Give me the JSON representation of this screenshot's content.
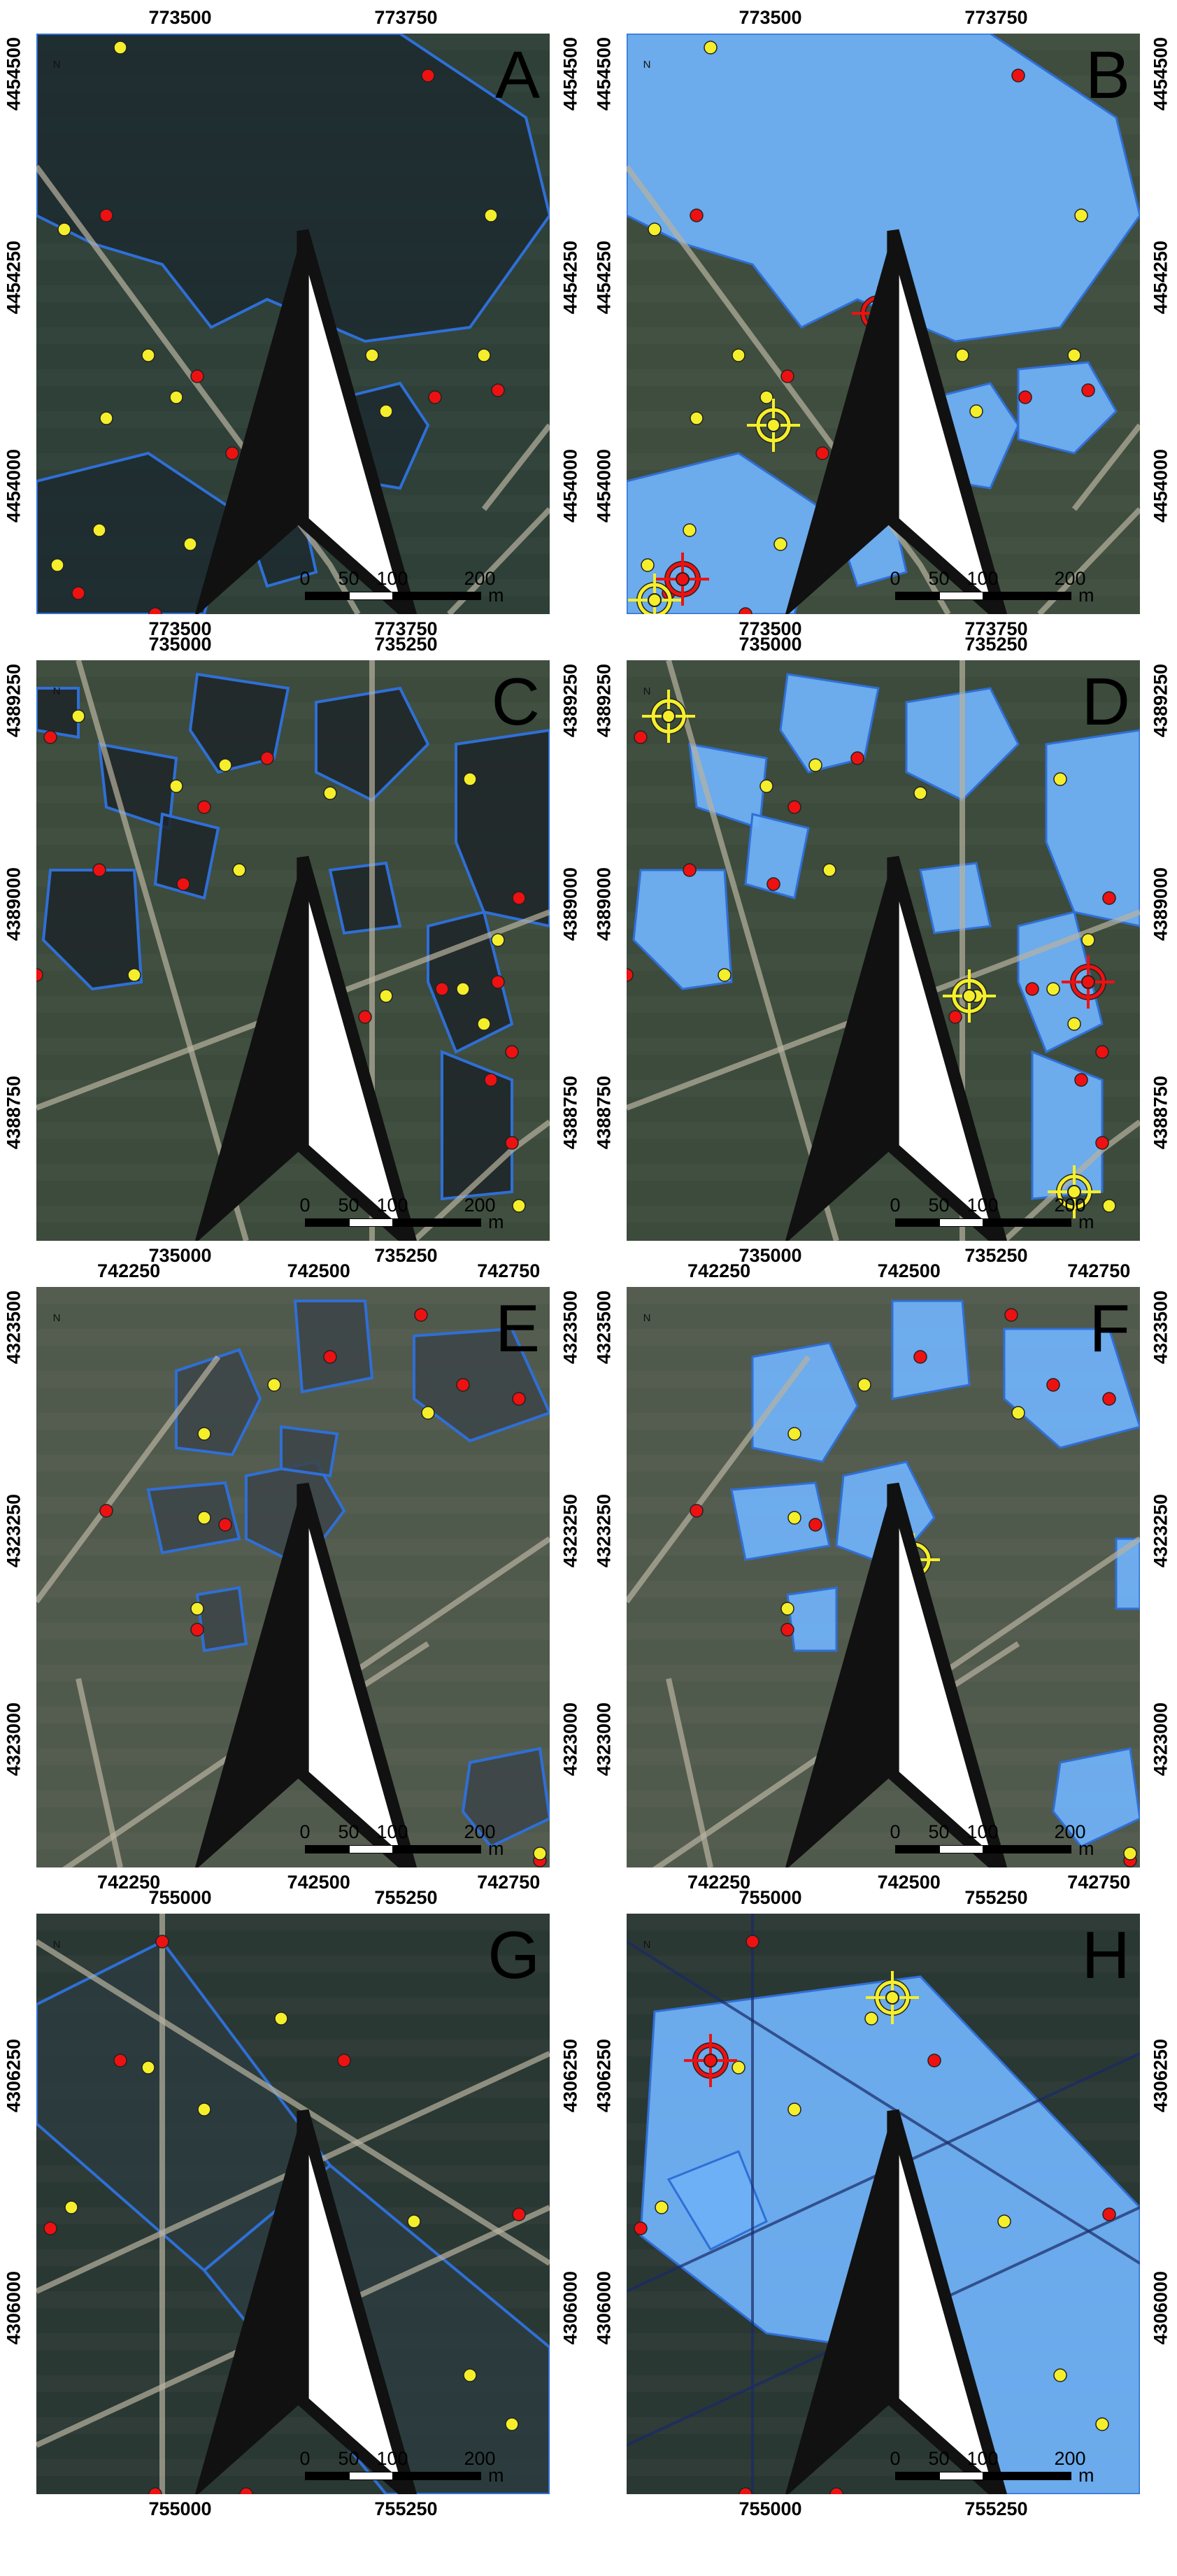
{
  "panels": [
    {
      "letter": "A",
      "x_ticks_top": [
        "773500",
        "773750"
      ],
      "x_ticks_bottom": [
        "773500",
        "773750"
      ],
      "y_ticks_left": [
        "4454500",
        "4454250",
        "4454000"
      ],
      "y_ticks_right": [
        "4454500",
        "4454250",
        "4454000"
      ],
      "scale": {
        "labels": [
          "0",
          "50",
          "100",
          "200"
        ],
        "unit": "m"
      },
      "classified": false,
      "base_tone": "#2e4038",
      "water_tone": "#1c2a2f",
      "water": [],
      "red_points": [],
      "yellow_points": [],
      "targets": []
    },
    {
      "letter": "B",
      "x_ticks_top": [
        "773500",
        "773750"
      ],
      "x_ticks_bottom": [
        "773500",
        "773750"
      ],
      "y_ticks_left": [
        "4454500",
        "4454250",
        "4454000"
      ],
      "y_ticks_right": [
        "4454500",
        "4454250",
        "4454000"
      ],
      "scale": {
        "labels": [
          "0",
          "50",
          "100",
          "200"
        ],
        "unit": "m"
      },
      "classified": true,
      "base_tone": "#3f4d3e",
      "water_tone": "#6fb0f5"
    },
    {
      "letter": "C",
      "x_ticks_top": [
        "735000",
        "735250"
      ],
      "x_ticks_bottom": [
        "735000",
        "735250"
      ],
      "y_ticks_left": [
        "4389250",
        "4389000",
        "4388750"
      ],
      "y_ticks_right": [
        "4389250",
        "4389000",
        "4388750"
      ],
      "scale": {
        "labels": [
          "0",
          "50",
          "100",
          "200"
        ],
        "unit": "m"
      },
      "classified": false,
      "base_tone": "#3c4b3c",
      "water_tone": "#1d2428"
    },
    {
      "letter": "D",
      "x_ticks_top": [
        "735000",
        "735250"
      ],
      "x_ticks_bottom": [
        "735000",
        "735250"
      ],
      "y_ticks_left": [
        "4389250",
        "4389000",
        "4388750"
      ],
      "y_ticks_right": [
        "4389250",
        "4389000",
        "4388750"
      ],
      "scale": {
        "labels": [
          "0",
          "50",
          "100",
          "200"
        ],
        "unit": "m"
      },
      "classified": true,
      "base_tone": "#3c4b3c",
      "water_tone": "#6fb0f5"
    },
    {
      "letter": "E",
      "x_ticks_top": [
        "742250",
        "742500",
        "742750"
      ],
      "x_ticks_bottom": [
        "742250",
        "742500",
        "742750"
      ],
      "y_ticks_left": [
        "4323500",
        "4323250",
        "4323000"
      ],
      "y_ticks_right": [
        "4323500",
        "4323250",
        "4323000"
      ],
      "scale": {
        "labels": [
          "0",
          "50",
          "100",
          "200"
        ],
        "unit": "m"
      },
      "classified": false,
      "base_tone": "#505a4c",
      "water_tone": "#3c4448"
    },
    {
      "letter": "F",
      "x_ticks_top": [
        "742250",
        "742500",
        "742750"
      ],
      "x_ticks_bottom": [
        "742250",
        "742500",
        "742750"
      ],
      "y_ticks_left": [
        "4323500",
        "4323250",
        "4323000"
      ],
      "y_ticks_right": [
        "4323500",
        "4323250",
        "4323000"
      ],
      "scale": {
        "labels": [
          "0",
          "50",
          "100",
          "200"
        ],
        "unit": "m"
      },
      "classified": true,
      "base_tone": "#505a4c",
      "water_tone": "#6fb0f5"
    },
    {
      "letter": "G",
      "x_ticks_top": [
        "755000",
        "755250"
      ],
      "x_ticks_bottom": [
        "755000",
        "755250"
      ],
      "y_ticks_left": [
        "4306250",
        "4306000"
      ],
      "y_ticks_right": [
        "4306250",
        "4306000"
      ],
      "scale": {
        "labels": [
          "0",
          "50",
          "100",
          "200"
        ],
        "unit": "m"
      },
      "classified": false,
      "base_tone": "#2a3834",
      "water_tone": "#2c3c40"
    },
    {
      "letter": "H",
      "x_ticks_top": [
        "755000",
        "755250"
      ],
      "x_ticks_bottom": [
        "755000",
        "755250"
      ],
      "y_ticks_left": [
        "4306250",
        "4306000"
      ],
      "y_ticks_right": [
        "4306250",
        "4306000"
      ],
      "scale": {
        "labels": [
          "0",
          "50",
          "100",
          "200"
        ],
        "unit": "m"
      },
      "classified": true,
      "base_tone": "#2a3834",
      "water_tone": "#6fb0f5"
    }
  ],
  "colors": {
    "water_outline": "#2f6fd6",
    "red_point": "#ee1111",
    "yellow_point": "#f4ef2a",
    "point_stroke": "#222222",
    "road": "#b8b2a0"
  },
  "icons": {
    "north_arrow": "north-arrow-icon",
    "target": "crosshair-target-icon"
  },
  "north_label": "N"
}
